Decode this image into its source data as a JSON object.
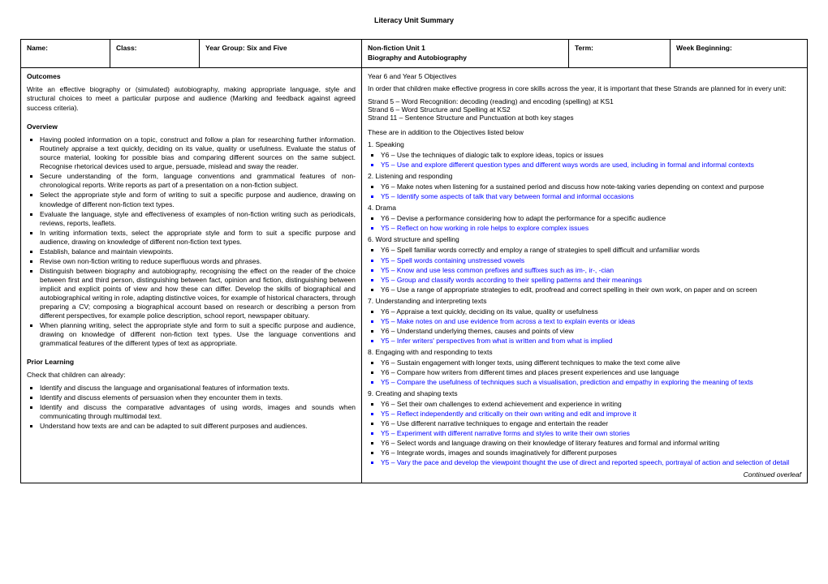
{
  "title": "Literacy Unit Summary",
  "header": {
    "name_label": "Name:",
    "class_label": "Class:",
    "year_group_label": "Year Group: Six and Five",
    "unit_label": "Non-fiction Unit 1",
    "unit_sub": "Biography and Autobiography",
    "term_label": "Term:",
    "week_label": "Week Beginning:"
  },
  "left": {
    "outcomes_label": "Outcomes",
    "outcomes_para": "Write an effective biography or (simulated) autobiography, making appropriate language, style and structural choices to meet a particular purpose and audience (Marking and feedback against agreed success criteria).",
    "overview_label": "Overview",
    "overview_items": [
      "Having pooled information on a topic, construct and follow a plan for researching further information. Routinely appraise a text quickly, deciding on its value, quality or usefulness. Evaluate the status of source material, looking for possible bias and comparing different sources on the same subject. Recognise rhetorical devices used to argue, persuade, mislead and sway the reader.",
      "Secure understanding of the form, language conventions and grammatical features of non-chronological reports. Write reports as part of a presentation on a non-fiction subject.",
      "Select the appropriate style and form of writing to suit a specific purpose and audience, drawing on knowledge of different non-fiction text types.",
      "Evaluate the language, style and effectiveness of examples of non-fiction writing such as periodicals, reviews, reports, leaflets.",
      "In writing information texts, select the appropriate style and form to suit a specific purpose and audience, drawing on knowledge of different non-fiction text types.",
      "Establish, balance and maintain viewpoints.",
      "Revise own non-fiction writing to reduce superfluous words and phrases.",
      "Distinguish between biography and autobiography, recognising the effect on the reader of the choice between first and third person, distinguishing between fact, opinion and fiction, distinguishing between implicit and explicit points of view and how these can differ. Develop the skills of biographical and autobiographical writing in role, adapting distinctive voices, for example of historical characters, through preparing a CV; composing a biographical account based on research or describing a person from different perspectives, for example police description, school report, newspaper obituary.",
      "When planning writing, select the appropriate style and form to suit a specific purpose and audience, drawing on knowledge of different non-fiction text types. Use the language conventions and grammatical features of the different types of text as appropriate."
    ],
    "prior_label": "Prior Learning",
    "prior_intro": "Check that children can already:",
    "prior_items": [
      "Identify and discuss the language and organisational features of information texts.",
      "Identify and discuss elements of persuasion when they encounter them in texts.",
      "Identify and discuss the comparative advantages of using words, images and sounds when communicating through multimodal text.",
      "Understand how texts are and can be adapted to suit different purposes and audiences."
    ]
  },
  "right": {
    "obj_head": "Year 6 and Year 5 Objectives",
    "intro": "In order that children make effective progress in core skills across the year, it is important that these Strands are planned for in every unit:",
    "strands": [
      "Strand 5 – Word Recognition: decoding (reading) and encoding (spelling) at KS1",
      "Strand 6 – Word Structure and Spelling at KS2",
      "Strand 11 – Sentence Structure and Punctuation at both key stages"
    ],
    "addition_note": "These are in addition to the Objectives listed below",
    "sections": [
      {
        "num": "1. Speaking",
        "items": [
          {
            "t": "Y6 – Use the techniques of dialogic talk to explore ideas, topics or issues",
            "blue": false
          },
          {
            "t": "Y5 – Use and explore different question types and different ways words are used, including in formal and informal contexts",
            "blue": true
          }
        ]
      },
      {
        "num": "2. Listening and responding",
        "items": [
          {
            "t": "Y6 – Make notes when listening for a sustained period and discuss how note-taking varies depending on context and purpose",
            "blue": false
          },
          {
            "t": "Y5 – Identify some aspects of talk that vary between formal and informal occasions",
            "blue": true
          }
        ]
      },
      {
        "num": "4. Drama",
        "items": [
          {
            "t": "Y6 – Devise a performance considering how to adapt the performance for a specific audience",
            "blue": false
          },
          {
            "t": "Y5 – Reflect on how working in role helps to explore complex issues",
            "blue": true
          }
        ]
      },
      {
        "num": "6. Word structure and spelling",
        "items": [
          {
            "t": "Y6 – Spell familiar words correctly and employ a range of strategies to spell difficult and unfamiliar words",
            "blue": false
          },
          {
            "t": "Y5 – Spell words containing unstressed vowels",
            "blue": true
          },
          {
            "t": "Y5 – Know and use less common prefixes and suffixes such as im-, ir-, -cian",
            "blue": true
          },
          {
            "t": "Y5 – Group and classify words according to their spelling patterns and their meanings",
            "blue": true
          },
          {
            "t": "Y6 – Use a range of appropriate strategies to edit, proofread and correct spelling in their own work, on paper and on screen",
            "blue": false
          }
        ]
      },
      {
        "num": "7. Understanding and interpreting texts",
        "items": [
          {
            "t": "Y6 – Appraise a text quickly, deciding on its value, quality or usefulness",
            "blue": false
          },
          {
            "t": "Y5 – Make notes on and use evidence from across a text to explain events or ideas",
            "blue": true
          },
          {
            "t": "Y6 – Understand underlying themes, causes and points of view",
            "blue": false
          },
          {
            "t": "Y5 – Infer writers' perspectives from what is written and from what is implied",
            "blue": true
          }
        ]
      },
      {
        "num": "8. Engaging with and responding to texts",
        "items": [
          {
            "t": "Y6 – Sustain engagement with longer texts, using different techniques to make the text come alive",
            "blue": false
          },
          {
            "t": "Y6 – Compare how writers from different times and places present experiences and use language",
            "blue": false
          },
          {
            "t": "Y5 – Compare the usefulness of techniques such a visualisation, prediction and empathy in exploring the meaning of texts",
            "blue": true
          }
        ]
      },
      {
        "num": "9. Creating and shaping texts",
        "items": [
          {
            "t": "Y6 – Set their own challenges to extend achievement and experience in writing",
            "blue": false
          },
          {
            "t": "Y5 – Reflect independently and critically on their own writing and edit and improve it",
            "blue": true
          },
          {
            "t": "Y6 – Use different narrative techniques to engage and entertain the reader",
            "blue": false
          },
          {
            "t": "Y5 – Experiment with different narrative forms and styles to write their own stories",
            "blue": true
          },
          {
            "t": "Y6 – Select words and language drawing on their knowledge of literary features and formal and informal writing",
            "blue": false
          },
          {
            "t": "Y6 – Integrate words, images and sounds imaginatively for different purposes",
            "blue": false
          },
          {
            "t": "Y5 – Vary the pace and develop the viewpoint thought the use of direct and reported speech, portrayal of action and selection of detail",
            "blue": true
          }
        ]
      }
    ],
    "continued": "Continued overleaf"
  }
}
